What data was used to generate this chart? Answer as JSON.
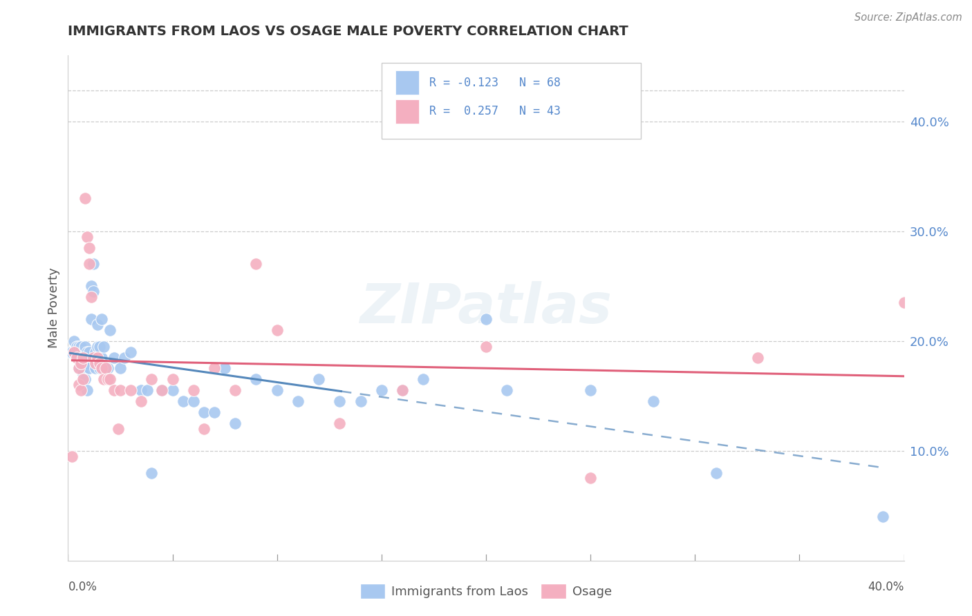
{
  "title": "IMMIGRANTS FROM LAOS VS OSAGE MALE POVERTY CORRELATION CHART",
  "source": "Source: ZipAtlas.com",
  "ylabel": "Male Poverty",
  "ytick_labels": [
    "10.0%",
    "20.0%",
    "30.0%",
    "40.0%"
  ],
  "ytick_values": [
    0.1,
    0.2,
    0.3,
    0.4
  ],
  "xrange": [
    0.0,
    0.4
  ],
  "yrange": [
    0.0,
    0.46
  ],
  "laos_color": "#a8c8f0",
  "osage_color": "#f4afc0",
  "laos_line_color": "#5588bb",
  "osage_line_color": "#e0607a",
  "tick_color": "#5588cc",
  "grid_color": "#cccccc",
  "watermark": "ZIPatlas",
  "laos_points": [
    [
      0.001,
      0.19
    ],
    [
      0.002,
      0.19
    ],
    [
      0.003,
      0.2
    ],
    [
      0.003,
      0.19
    ],
    [
      0.004,
      0.195
    ],
    [
      0.005,
      0.195
    ],
    [
      0.005,
      0.185
    ],
    [
      0.005,
      0.175
    ],
    [
      0.006,
      0.195
    ],
    [
      0.006,
      0.185
    ],
    [
      0.006,
      0.175
    ],
    [
      0.007,
      0.19
    ],
    [
      0.007,
      0.18
    ],
    [
      0.007,
      0.17
    ],
    [
      0.008,
      0.195
    ],
    [
      0.008,
      0.18
    ],
    [
      0.008,
      0.165
    ],
    [
      0.009,
      0.19
    ],
    [
      0.009,
      0.18
    ],
    [
      0.009,
      0.155
    ],
    [
      0.01,
      0.19
    ],
    [
      0.01,
      0.175
    ],
    [
      0.011,
      0.25
    ],
    [
      0.011,
      0.22
    ],
    [
      0.012,
      0.27
    ],
    [
      0.012,
      0.245
    ],
    [
      0.013,
      0.19
    ],
    [
      0.013,
      0.175
    ],
    [
      0.014,
      0.215
    ],
    [
      0.014,
      0.195
    ],
    [
      0.015,
      0.195
    ],
    [
      0.015,
      0.175
    ],
    [
      0.016,
      0.22
    ],
    [
      0.016,
      0.185
    ],
    [
      0.017,
      0.195
    ],
    [
      0.018,
      0.175
    ],
    [
      0.019,
      0.175
    ],
    [
      0.02,
      0.21
    ],
    [
      0.022,
      0.185
    ],
    [
      0.025,
      0.175
    ],
    [
      0.027,
      0.185
    ],
    [
      0.03,
      0.19
    ],
    [
      0.035,
      0.155
    ],
    [
      0.038,
      0.155
    ],
    [
      0.04,
      0.08
    ],
    [
      0.045,
      0.155
    ],
    [
      0.05,
      0.155
    ],
    [
      0.055,
      0.145
    ],
    [
      0.06,
      0.145
    ],
    [
      0.065,
      0.135
    ],
    [
      0.07,
      0.135
    ],
    [
      0.075,
      0.175
    ],
    [
      0.08,
      0.125
    ],
    [
      0.09,
      0.165
    ],
    [
      0.1,
      0.155
    ],
    [
      0.11,
      0.145
    ],
    [
      0.12,
      0.165
    ],
    [
      0.13,
      0.145
    ],
    [
      0.14,
      0.145
    ],
    [
      0.15,
      0.155
    ],
    [
      0.16,
      0.155
    ],
    [
      0.17,
      0.165
    ],
    [
      0.2,
      0.22
    ],
    [
      0.21,
      0.155
    ],
    [
      0.25,
      0.155
    ],
    [
      0.28,
      0.145
    ],
    [
      0.31,
      0.08
    ],
    [
      0.39,
      0.04
    ]
  ],
  "osage_points": [
    [
      0.002,
      0.095
    ],
    [
      0.003,
      0.19
    ],
    [
      0.004,
      0.185
    ],
    [
      0.005,
      0.175
    ],
    [
      0.005,
      0.16
    ],
    [
      0.006,
      0.18
    ],
    [
      0.006,
      0.155
    ],
    [
      0.007,
      0.185
    ],
    [
      0.007,
      0.165
    ],
    [
      0.008,
      0.33
    ],
    [
      0.009,
      0.295
    ],
    [
      0.01,
      0.285
    ],
    [
      0.01,
      0.27
    ],
    [
      0.011,
      0.24
    ],
    [
      0.012,
      0.185
    ],
    [
      0.013,
      0.18
    ],
    [
      0.014,
      0.185
    ],
    [
      0.015,
      0.18
    ],
    [
      0.016,
      0.175
    ],
    [
      0.017,
      0.165
    ],
    [
      0.018,
      0.175
    ],
    [
      0.019,
      0.165
    ],
    [
      0.02,
      0.165
    ],
    [
      0.022,
      0.155
    ],
    [
      0.024,
      0.12
    ],
    [
      0.025,
      0.155
    ],
    [
      0.03,
      0.155
    ],
    [
      0.035,
      0.145
    ],
    [
      0.04,
      0.165
    ],
    [
      0.045,
      0.155
    ],
    [
      0.05,
      0.165
    ],
    [
      0.06,
      0.155
    ],
    [
      0.065,
      0.12
    ],
    [
      0.07,
      0.175
    ],
    [
      0.08,
      0.155
    ],
    [
      0.09,
      0.27
    ],
    [
      0.1,
      0.21
    ],
    [
      0.13,
      0.125
    ],
    [
      0.16,
      0.155
    ],
    [
      0.2,
      0.195
    ],
    [
      0.25,
      0.075
    ],
    [
      0.33,
      0.185
    ],
    [
      0.4,
      0.235
    ]
  ]
}
